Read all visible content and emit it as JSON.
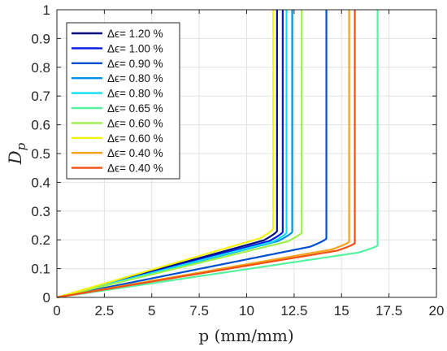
{
  "chart_data": {
    "type": "line",
    "xlabel": "p (mm/mm)",
    "ylabel_main": "D",
    "ylabel_sub": "p",
    "xlim": [
      0,
      20
    ],
    "ylim": [
      0,
      1
    ],
    "xticks": [
      "0",
      "2.5",
      "5",
      "7.5",
      "10",
      "12.5",
      "15",
      "17.5",
      "20"
    ],
    "yticks": [
      "0",
      "0.1",
      "0.2",
      "0.3",
      "0.4",
      "0.5",
      "0.6",
      "0.7",
      "0.8",
      "0.9",
      "1"
    ],
    "grid": true,
    "legend_position": "top-left",
    "series": [
      {
        "name": "Δϵ=  1.20 %",
        "color": "#000c80",
        "asymptote": 11.6,
        "slope": 0.0182
      },
      {
        "name": "Δϵ=  1.00 %",
        "color": "#0019e6",
        "asymptote": 11.9,
        "slope": 0.0175
      },
      {
        "name": "Δϵ=  0.90 %",
        "color": "#0050d0",
        "asymptote": 14.2,
        "slope": 0.0132
      },
      {
        "name": "Δϵ=  0.80 %",
        "color": "#0090e8",
        "asymptote": 12.4,
        "slope": 0.0168
      },
      {
        "name": "Δϵ=  0.80 %",
        "color": "#12e0f0",
        "asymptote": 12.1,
        "slope": 0.017
      },
      {
        "name": "Δϵ=  0.65 %",
        "color": "#55f2a0",
        "asymptote": 16.9,
        "slope": 0.0098
      },
      {
        "name": "Δϵ=  0.60 %",
        "color": "#9af24a",
        "asymptote": 12.9,
        "slope": 0.016
      },
      {
        "name": "Δϵ=  0.60 %",
        "color": "#f2f20a",
        "asymptote": 11.4,
        "slope": 0.0192
      },
      {
        "name": "Δϵ=  0.40 %",
        "color": "#f5a21a",
        "asymptote": 15.4,
        "slope": 0.0115
      },
      {
        "name": "Δϵ=  0.40 %",
        "color": "#f25015",
        "asymptote": 15.7,
        "slope": 0.011
      }
    ]
  }
}
